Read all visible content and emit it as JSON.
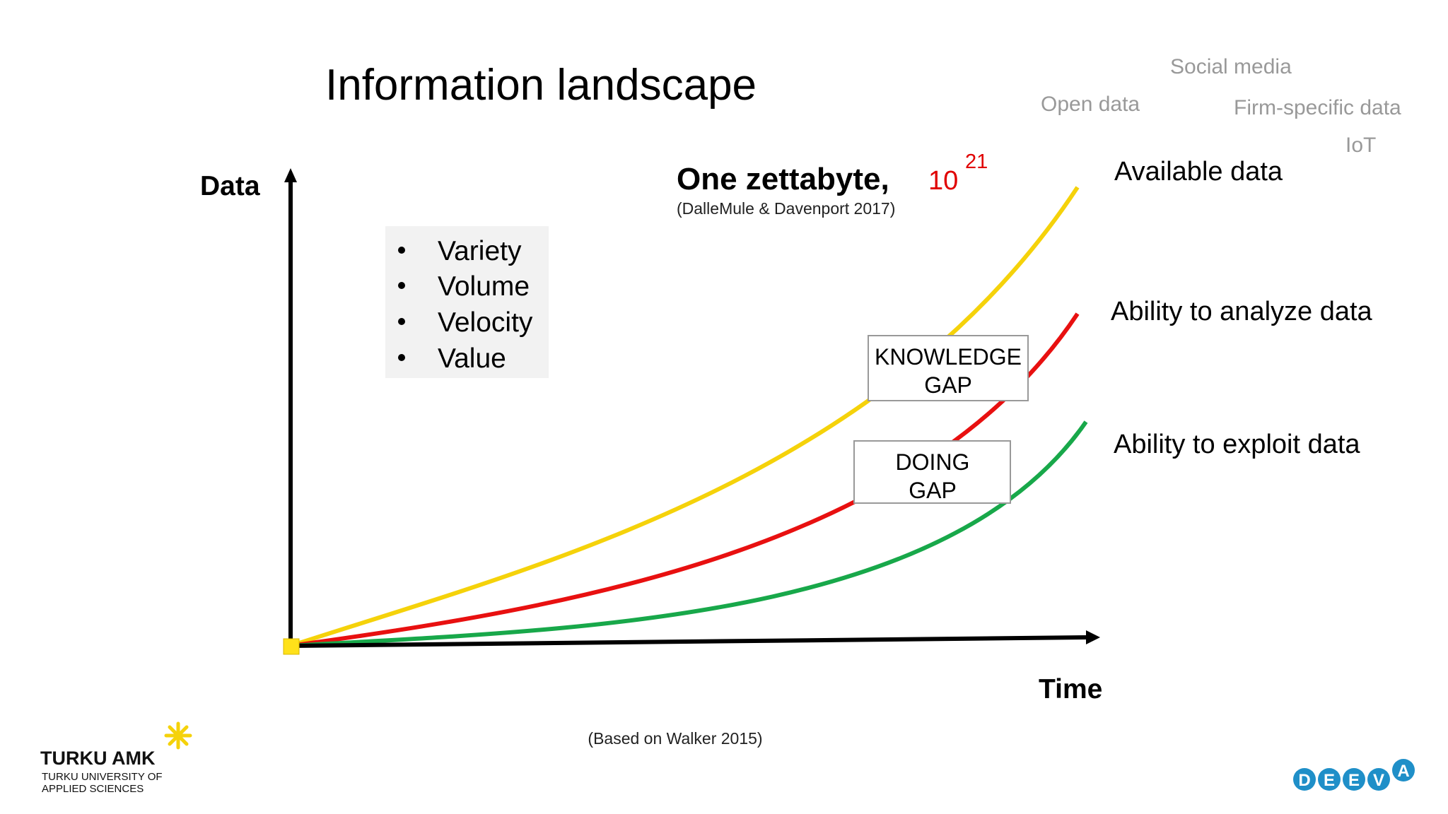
{
  "title": "Information landscape",
  "axes": {
    "y": "Data",
    "x": "Time"
  },
  "bullets": [
    "Variety",
    "Volume",
    "Velocity",
    "Value"
  ],
  "headline": {
    "text": "One zettabyte,",
    "base": "10",
    "exponent": "21",
    "citation": "(DalleMule & Davenport 2017)"
  },
  "sources": [
    "Social media",
    "Open data",
    "Firm-specific data",
    "IoT"
  ],
  "curves": [
    "Available data",
    "Ability to analyze data",
    "Ability to exploit data"
  ],
  "gaps": [
    {
      "lines": [
        "KNOWLEDGE",
        "GAP"
      ]
    },
    {
      "lines": [
        "DOING",
        "GAP"
      ]
    }
  ],
  "footnote": "(Based on Walker 2015)",
  "logo": {
    "name": "TURKU AMK",
    "subtitle": [
      "TURKU UNIVERSITY OF",
      "APPLIED SCIENCES"
    ]
  },
  "deeva": [
    "D",
    "E",
    "E",
    "V",
    "A"
  ]
}
